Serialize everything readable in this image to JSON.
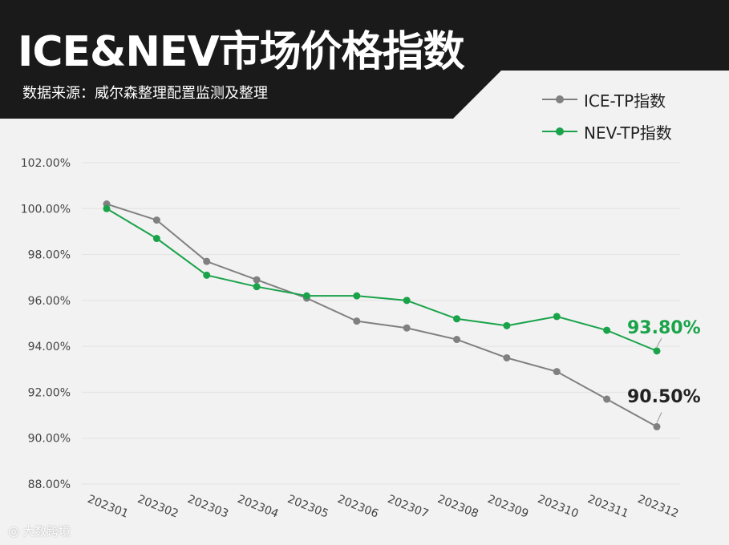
{
  "header": {
    "title": "ICE&NEV市场价格指数",
    "subtitle": "数据来源：威尔森整理配置监测及整理"
  },
  "watermark": {
    "text": "大数跨境",
    "icon": "watermark-logo-icon"
  },
  "colors": {
    "header_bg": "#1a1a1a",
    "ice": "#808080",
    "nev": "#1aa34a",
    "end_label_ice": "#222222",
    "grid": "#e2e2e2"
  },
  "chart_data": {
    "type": "line",
    "title": "ICE&NEV市场价格指数",
    "categories": [
      "202301",
      "202302",
      "202303",
      "202304",
      "202305",
      "202306",
      "202307",
      "202308",
      "202309",
      "202310",
      "202311",
      "202312"
    ],
    "series": [
      {
        "name": "ICE-TP指数",
        "values": [
          100.2,
          99.5,
          97.7,
          96.9,
          96.1,
          95.1,
          94.8,
          94.3,
          93.5,
          92.9,
          91.7,
          90.5
        ],
        "end_label": "90.50%"
      },
      {
        "name": "NEV-TP指数",
        "values": [
          100.0,
          98.7,
          97.1,
          96.6,
          96.2,
          96.2,
          96.0,
          95.2,
          94.9,
          95.3,
          94.7,
          93.8
        ],
        "end_label": "93.80%"
      }
    ],
    "yticks": [
      "88.00%",
      "90.00%",
      "92.00%",
      "94.00%",
      "96.00%",
      "98.00%",
      "100.00%",
      "102.00%"
    ],
    "ylim": [
      88,
      102
    ],
    "grid": true,
    "legend_position": "top-right"
  }
}
